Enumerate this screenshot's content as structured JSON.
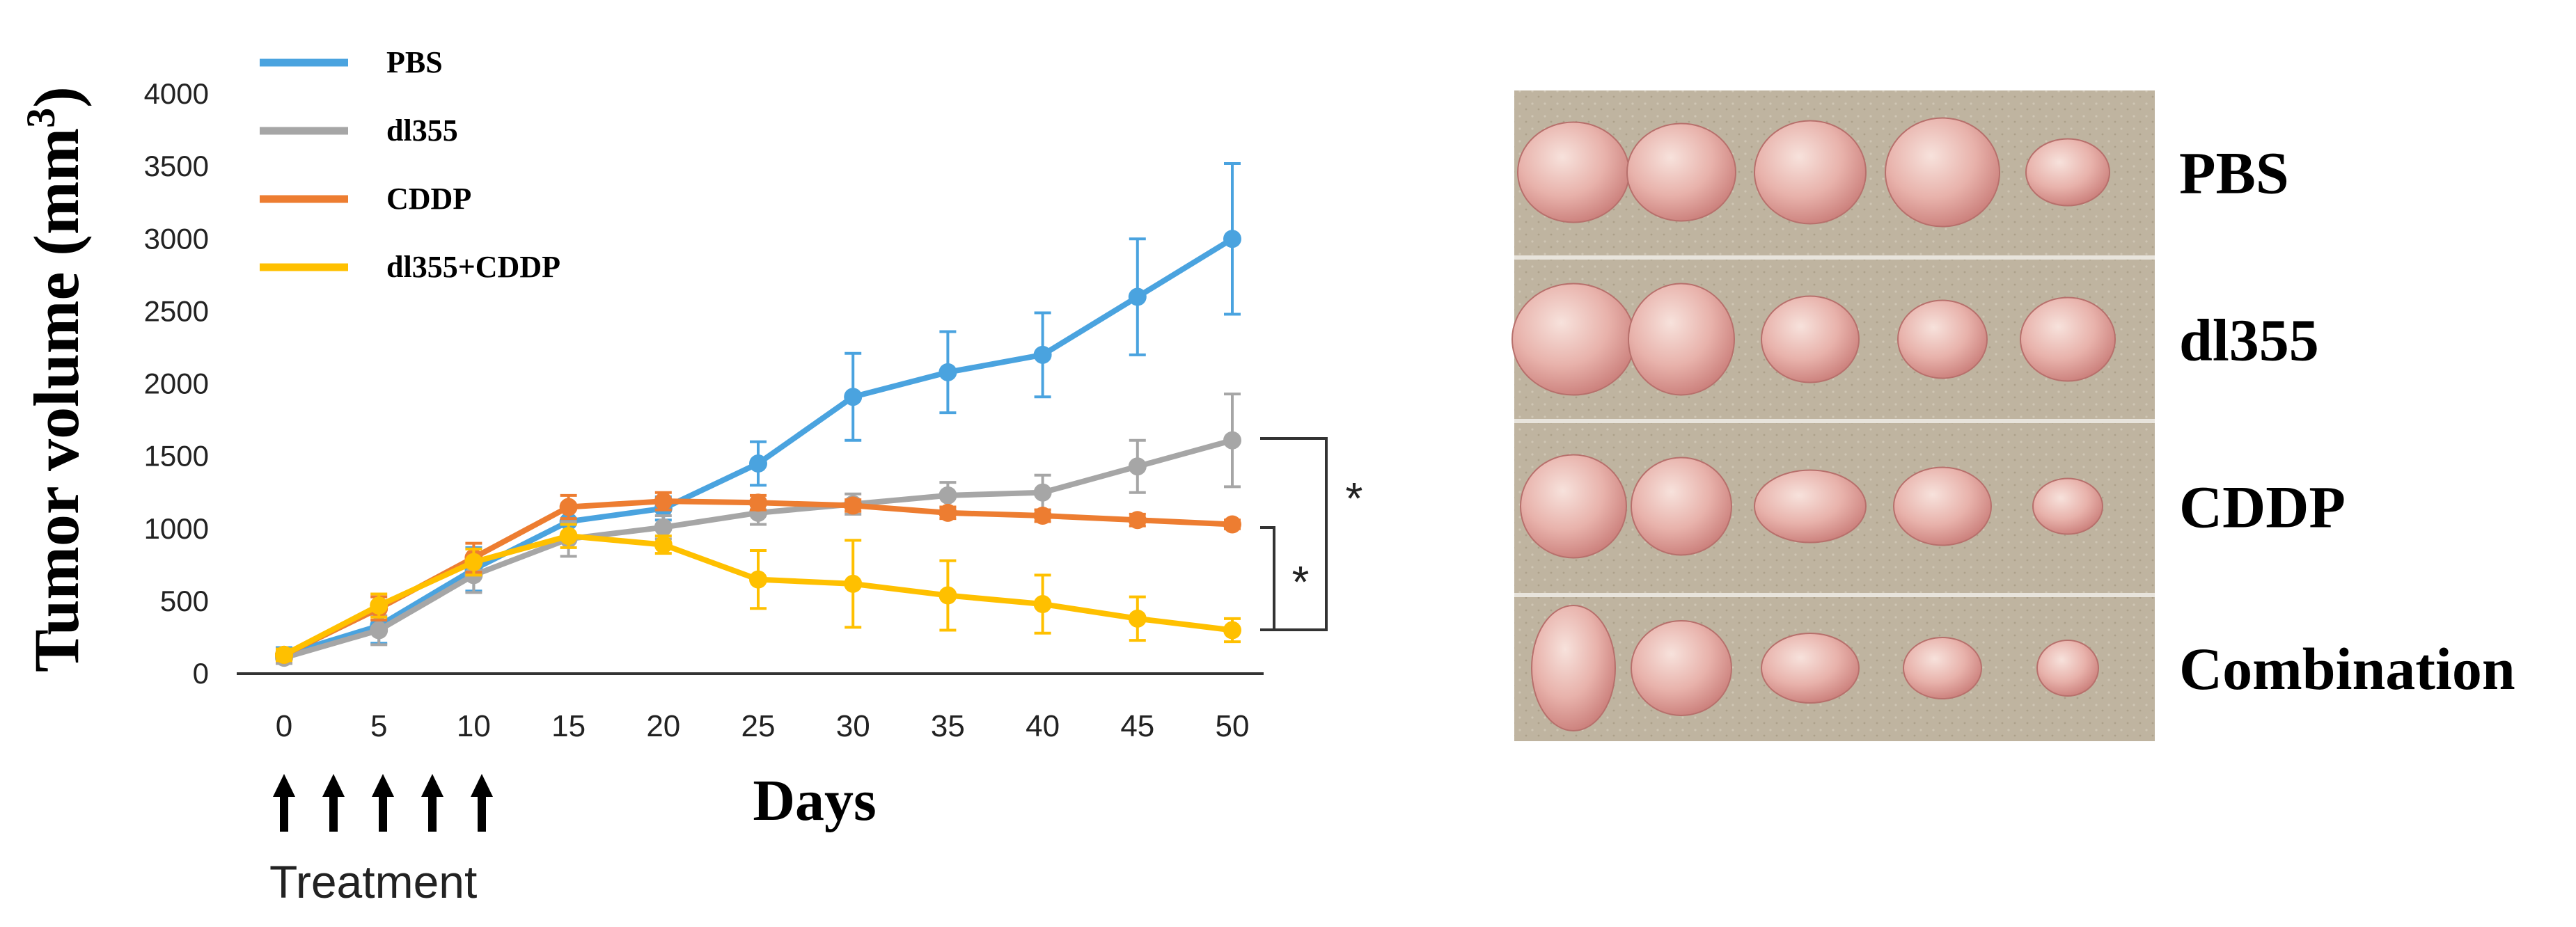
{
  "chart_data": {
    "type": "line",
    "title": "",
    "ylabel": "Tumor volume (mm",
    "ylabel_sup": "3",
    "ylabel_close": ")",
    "xlabel": "Days",
    "ylim": [
      0,
      4000
    ],
    "xlim": [
      0,
      50
    ],
    "yticks": [
      0,
      500,
      1000,
      1500,
      2000,
      2500,
      3000,
      3500,
      4000
    ],
    "xticks": [
      0,
      5,
      10,
      15,
      20,
      25,
      30,
      35,
      40,
      45,
      50
    ],
    "x": [
      0,
      5,
      10,
      15,
      20,
      25,
      30,
      35,
      40,
      45,
      50
    ],
    "grid": false,
    "legend_position": "top-left",
    "series": [
      {
        "name": "PBS",
        "color": "#4aa3df",
        "values": [
          130,
          330,
          720,
          1050,
          1140,
          1450,
          1910,
          2080,
          2200,
          2600,
          3000
        ],
        "errors": [
          50,
          120,
          150,
          100,
          80,
          150,
          300,
          280,
          290,
          400,
          520
        ]
      },
      {
        "name": "dl355",
        "color": "#a6a6a6",
        "values": [
          110,
          300,
          680,
          930,
          1010,
          1110,
          1170,
          1230,
          1250,
          1430,
          1610
        ],
        "errors": [
          40,
          100,
          120,
          120,
          80,
          80,
          70,
          90,
          120,
          180,
          320
        ]
      },
      {
        "name": "CDDP",
        "color": "#ed7d31",
        "values": [
          130,
          450,
          800,
          1150,
          1190,
          1180,
          1160,
          1110,
          1090,
          1060,
          1030
        ],
        "errors": [
          40,
          80,
          100,
          80,
          60,
          50,
          40,
          40,
          40,
          40,
          30
        ]
      },
      {
        "name": "dl355+CDDP",
        "color": "#ffc000",
        "values": [
          130,
          470,
          770,
          950,
          890,
          650,
          620,
          540,
          480,
          380,
          300
        ],
        "errors": [
          40,
          80,
          90,
          80,
          60,
          200,
          300,
          240,
          200,
          150,
          80
        ]
      }
    ],
    "significance_markers": [
      "*",
      "*"
    ],
    "annotations": {
      "treatment_label": "Treatment",
      "treatment_arrow_count": 5
    }
  },
  "photo_panel": {
    "rows": [
      {
        "label": "PBS",
        "tumor_count": 5
      },
      {
        "label": "dl355",
        "tumor_count": 5
      },
      {
        "label": "CDDP",
        "tumor_count": 5
      },
      {
        "label": "Combination",
        "tumor_count": 5
      }
    ],
    "background_color": "#bdb29e",
    "tumor_color": "#e7b3ad"
  }
}
